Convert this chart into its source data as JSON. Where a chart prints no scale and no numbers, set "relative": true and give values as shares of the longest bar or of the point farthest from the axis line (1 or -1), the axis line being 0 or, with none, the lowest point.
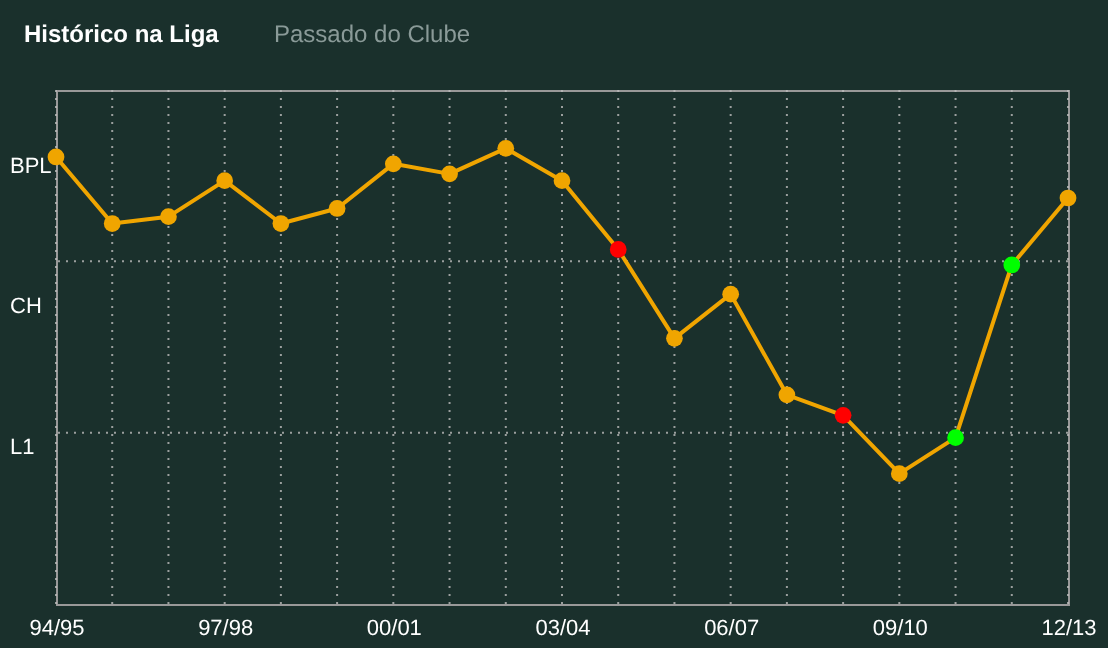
{
  "chart_data": {
    "type": "line",
    "relative": true,
    "categories": [
      "94/95",
      null,
      null,
      "97/98",
      null,
      null,
      "00/01",
      null,
      null,
      "03/04",
      null,
      null,
      "06/07",
      null,
      null,
      "09/10",
      null,
      null,
      "12/13"
    ],
    "series": [
      {
        "color": "#f0a500",
        "values": [
          0.981,
          0.835,
          0.85,
          0.929,
          0.835,
          0.868,
          0.966,
          0.944,
          1,
          0.929,
          0.778,
          0.583,
          0.68,
          0.459,
          0.414,
          0.286,
          0.365,
          0.744,
          0.891
        ],
        "colors": [
          "#f0a500",
          "#f0a500",
          "#f0a500",
          "#f0a500",
          "#f0a500",
          "#f0a500",
          "#f0a500",
          "#f0a500",
          "#f0a500",
          "#f0a500",
          "#ff0000",
          "#f0a500",
          "#f0a500",
          "#f0a500",
          "#ff0000",
          "#f0a500",
          "#00ff00",
          "#00ff00",
          "#f0a500"
        ]
      }
    ],
    "ref_lines": [
      {
        "axis": "y",
        "value": 0.376,
        "label": null,
        "line_style": "dotted"
      },
      {
        "axis": "y",
        "value": 0.752,
        "label": null,
        "line_style": "dotted"
      }
    ],
    "grid": "x",
    "marker": "circle",
    "line_style": "solid",
    "annotations": [
      "Histórico na Liga",
      "Passado do Clube",
      "BPL",
      "CH",
      "L1"
    ]
  }
}
